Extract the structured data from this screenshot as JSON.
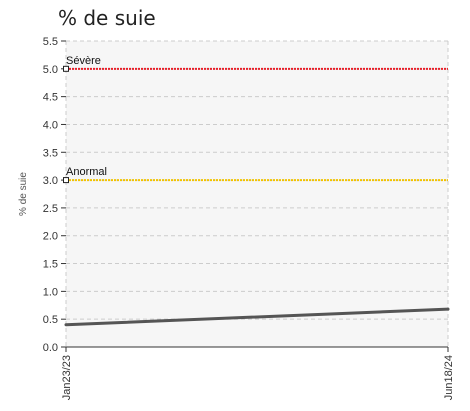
{
  "chart_data": {
    "type": "line",
    "title": "% de suie",
    "ylabel": "% de suie",
    "xlabel": "",
    "ylim": [
      0,
      5.5
    ],
    "y_ticks": [
      "0.0",
      "0.5",
      "1.0",
      "1.5",
      "2.0",
      "2.5",
      "3.0",
      "3.5",
      "4.0",
      "4.5",
      "5.0",
      "5.5"
    ],
    "x_ticks": [
      "Jan23/23",
      "Jun18/24"
    ],
    "grid": true,
    "thresholds": [
      {
        "label": "Sévère",
        "value": 5.0,
        "color": "#e8202a"
      },
      {
        "label": "Anormal",
        "value": 3.0,
        "color": "#f2c300"
      }
    ],
    "series": [
      {
        "color": "#555555",
        "x": [
          "Jan23/23",
          "Jun18/24"
        ],
        "values": [
          0.4,
          0.68
        ]
      }
    ]
  }
}
